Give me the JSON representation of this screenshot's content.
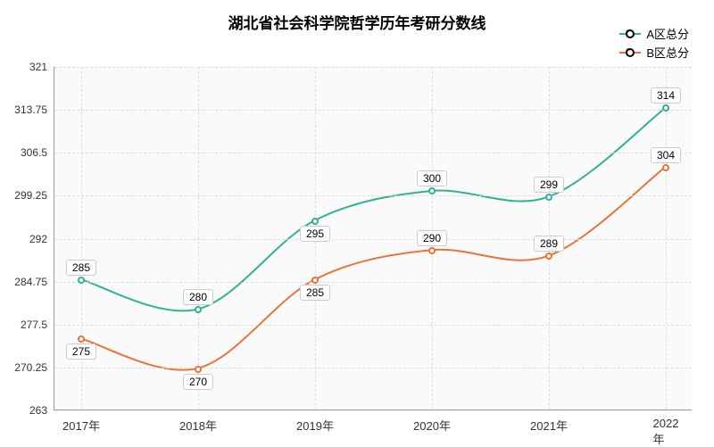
{
  "chart": {
    "type": "line",
    "title": "湖北省社会科学院哲学历年考研分数线",
    "title_fontsize": 17,
    "background_color": "#ffffff",
    "grid_color": "#dddddd",
    "axis_color": "#999999",
    "plot_bg": "#fafafa",
    "ylim": [
      263,
      321
    ],
    "yticks": [
      263,
      270.25,
      277.5,
      284.75,
      292,
      299.25,
      306.5,
      313.75,
      321
    ],
    "xlabels": [
      "2017年",
      "2018年",
      "2019年",
      "2020年",
      "2021年",
      "2022年"
    ],
    "series": [
      {
        "name": "A区总分",
        "color": "#2fb199",
        "values": [
          285,
          280,
          295,
          300,
          299,
          314
        ],
        "label_side": [
          "above",
          "above",
          "below",
          "above",
          "above",
          "above"
        ]
      },
      {
        "name": "B区总分",
        "color": "#e8743b",
        "values": [
          275,
          270,
          285,
          290,
          289,
          304
        ],
        "label_side": [
          "below",
          "below",
          "below",
          "above",
          "above",
          "above"
        ]
      }
    ],
    "legend_fontsize": 13,
    "tick_fontsize": 12
  }
}
